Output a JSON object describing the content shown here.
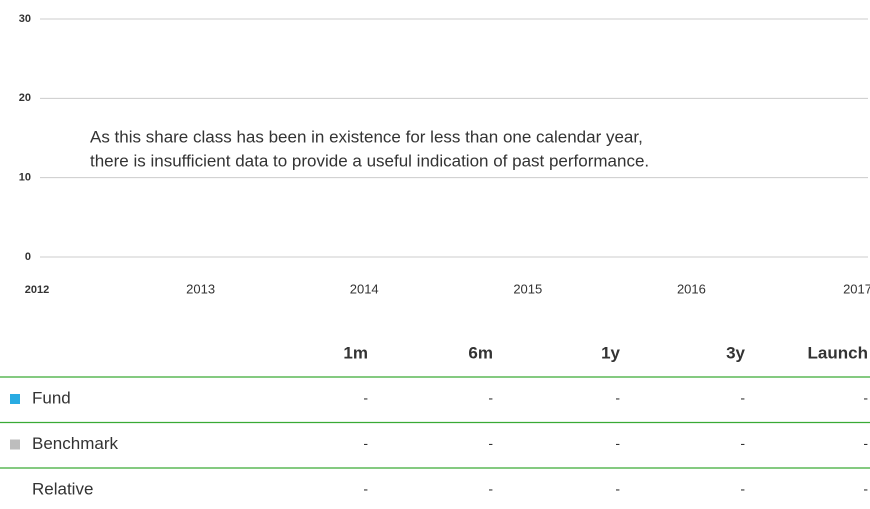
{
  "chart_data": {
    "type": "bar",
    "annotation": [
      "As this share class has been in existence for less than one calendar year,",
      "there is insufficient data to provide a useful indication of past performance."
    ],
    "categories": [
      "2012",
      "2013",
      "2014",
      "2015",
      "2016",
      "2017"
    ],
    "ylim": [
      0,
      30
    ],
    "yticks": [
      0,
      10,
      20,
      30
    ],
    "grid": true
  },
  "table": {
    "columns": [
      "1m",
      "6m",
      "1y",
      "3y",
      "Launch"
    ],
    "rows": [
      {
        "name": "Fund",
        "color": "#29abe2",
        "values": [
          "-",
          "-",
          "-",
          "-",
          "-"
        ]
      },
      {
        "name": "Benchmark",
        "color": "#bdbdbd",
        "values": [
          "-",
          "-",
          "-",
          "-",
          "-"
        ]
      },
      {
        "name": "Relative",
        "values": [
          "-",
          "-",
          "-",
          "-",
          "-"
        ]
      }
    ]
  }
}
